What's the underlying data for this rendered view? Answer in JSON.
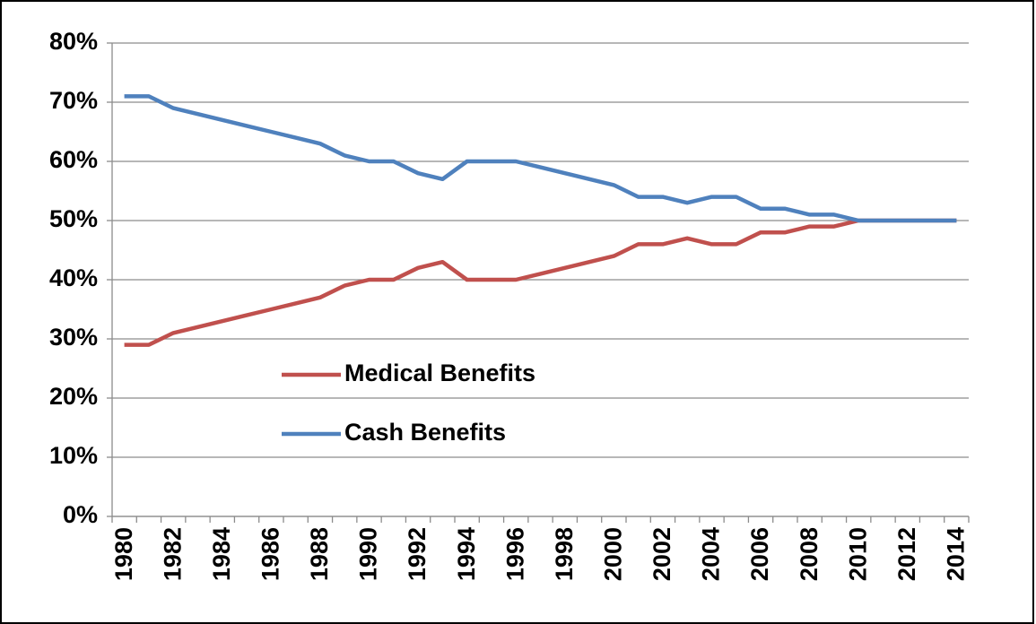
{
  "chart_data": {
    "type": "line",
    "categories": [
      "1980",
      null,
      "1982",
      null,
      "1984",
      null,
      "1986",
      null,
      "1988",
      null,
      "1990",
      null,
      "1992",
      null,
      "1994",
      null,
      "1996",
      null,
      "1998",
      null,
      "2000",
      null,
      "2002",
      null,
      "2004",
      null,
      "2006",
      null,
      "2008",
      null,
      "2010",
      null,
      "2012",
      null,
      "2014"
    ],
    "series": [
      {
        "name": "Medical Benefits",
        "color": "#c0504d",
        "values": [
          29,
          29,
          31,
          32,
          33,
          34,
          35,
          36,
          37,
          39,
          40,
          40,
          42,
          43,
          40,
          40,
          40,
          41,
          42,
          43,
          44,
          46,
          46,
          47,
          46,
          46,
          48,
          48,
          49,
          49,
          50,
          50,
          50,
          50,
          50
        ]
      },
      {
        "name": "Cash Benefits",
        "color": "#4f81bd",
        "values": [
          71,
          71,
          69,
          68,
          67,
          66,
          65,
          64,
          63,
          61,
          60,
          60,
          58,
          57,
          60,
          60,
          60,
          59,
          58,
          57,
          56,
          54,
          54,
          53,
          54,
          54,
          52,
          52,
          51,
          51,
          50,
          50,
          50,
          50,
          50
        ]
      }
    ],
    "ylim": [
      0,
      80
    ],
    "yticks": [
      {
        "value": 0,
        "label": "0%"
      },
      {
        "value": 10,
        "label": "10%"
      },
      {
        "value": 20,
        "label": "20%"
      },
      {
        "value": 30,
        "label": "30%"
      },
      {
        "value": 40,
        "label": "40%"
      },
      {
        "value": 50,
        "label": "50%"
      },
      {
        "value": 60,
        "label": "60%"
      },
      {
        "value": 70,
        "label": "70%"
      },
      {
        "value": 80,
        "label": "80%"
      }
    ],
    "grid": true
  }
}
